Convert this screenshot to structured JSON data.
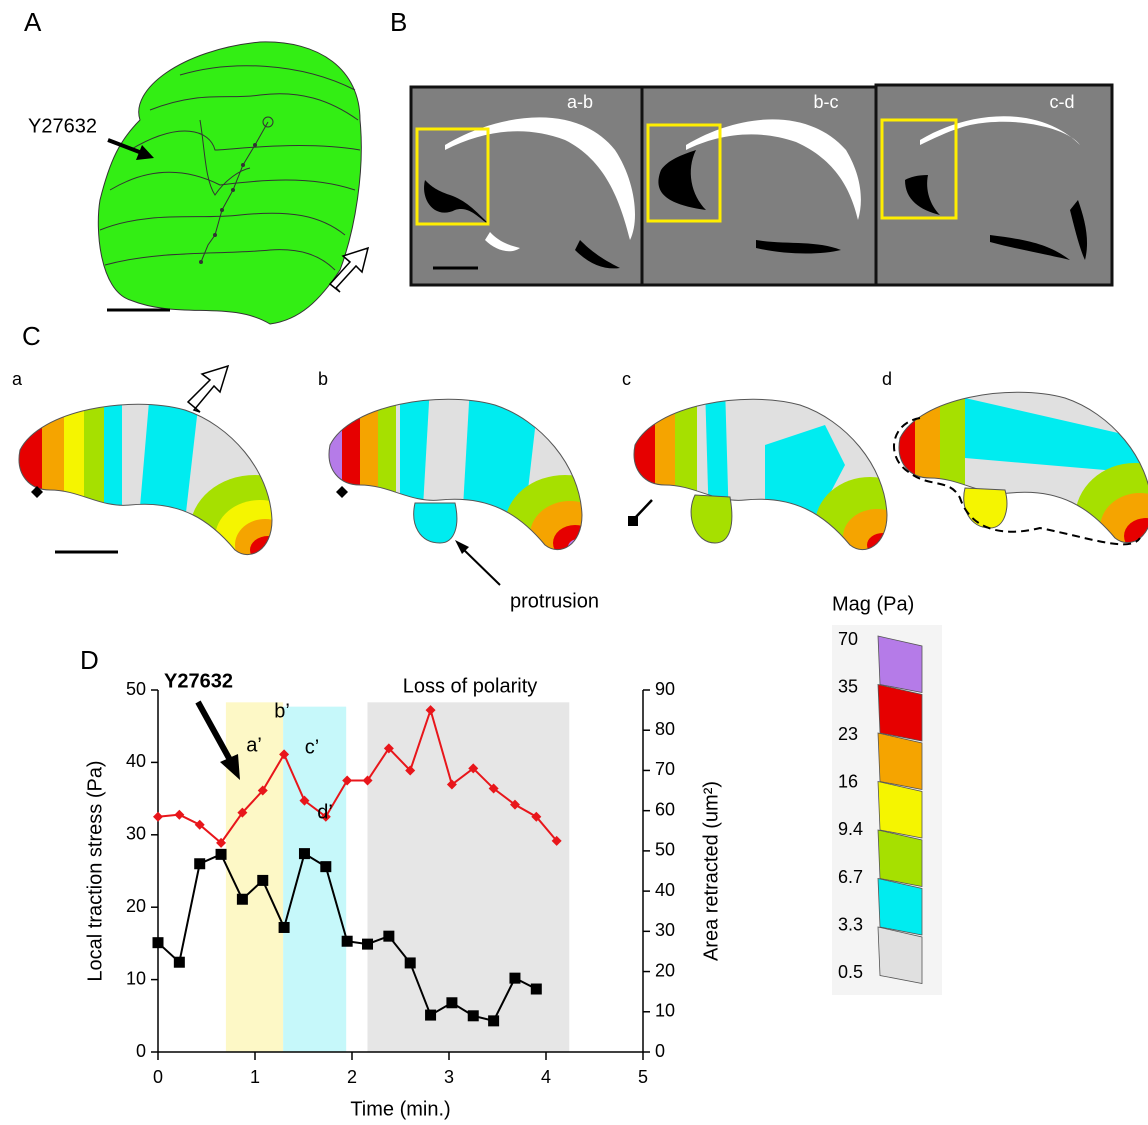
{
  "panel_labels": [
    "A",
    "B",
    "C",
    "D"
  ],
  "panel_a": {
    "annotation": "Y27632"
  },
  "panel_b": {
    "frames": [
      "a-b",
      "b-c",
      "c-d"
    ]
  },
  "panel_c": {
    "frames": [
      "a",
      "b",
      "c",
      "d"
    ],
    "annotation": "protrusion"
  },
  "colorbar": {
    "title": "Mag (Pa)",
    "ticks": [
      70,
      35,
      23,
      16,
      9.4,
      6.7,
      3.3,
      0.5
    ],
    "colors": [
      "#b57be8",
      "#e60000",
      "#f5a400",
      "#f5f500",
      "#a6e000",
      "#00ecf0",
      "#e0e0e0"
    ]
  },
  "chart_data": {
    "type": "line",
    "xlabel": "Time (min.)",
    "ylabel": "Local traction stress (Pa)",
    "y2label": "Area retracted (um²)",
    "annotations": [
      "Y27632",
      "Loss of polarity",
      "a’",
      "b’",
      "c’",
      "d’"
    ],
    "xlim": [
      0,
      5
    ],
    "xticks": [
      0,
      1,
      2,
      3,
      4,
      5
    ],
    "ylim": [
      0,
      50
    ],
    "yticks": [
      0,
      10,
      20,
      30,
      40,
      50
    ],
    "y2lim": [
      0,
      90
    ],
    "y2ticks": [
      0,
      10,
      20,
      30,
      40,
      50,
      60,
      70,
      80,
      90
    ],
    "bands": [
      {
        "start": 0.7,
        "end": 1.29,
        "top": 48.3,
        "color": "#fdf8c6"
      },
      {
        "start": 1.29,
        "end": 1.94,
        "top": 47.7,
        "color": "#c6f8fa"
      },
      {
        "start": 2.16,
        "end": 4.24,
        "top": 48.3,
        "color": "#e6e6e6"
      }
    ],
    "series": [
      {
        "color": "#000000",
        "marker": "square",
        "x": [
          0,
          0.22,
          0.43,
          0.65,
          0.87,
          1.08,
          1.3,
          1.51,
          1.73,
          1.95,
          2.16,
          2.38,
          2.6,
          2.81,
          3.03,
          3.25,
          3.46,
          3.68,
          3.9
        ],
        "values": [
          15.1,
          12.4,
          26,
          27.3,
          21.1,
          23.7,
          17.2,
          27.4,
          25.6,
          15.3,
          14.9,
          16,
          12.3,
          5.1,
          6.8,
          5,
          4.3,
          10.2,
          8.7
        ]
      },
      {
        "color": "#e8161b",
        "marker": "diamond",
        "axis": "y2",
        "x": [
          0,
          0.22,
          0.43,
          0.65,
          0.87,
          1.08,
          1.3,
          1.51,
          1.73,
          1.95,
          2.16,
          2.38,
          2.6,
          2.81,
          3.03,
          3.25,
          3.46,
          3.68,
          3.9,
          4.11
        ],
        "values": [
          58.5,
          59,
          56.5,
          52,
          59.5,
          65,
          74,
          62.5,
          58.5,
          67.5,
          67.5,
          75.5,
          70,
          85,
          66.5,
          70.5,
          65.5,
          61.5,
          58.5,
          52.5
        ]
      }
    ]
  }
}
